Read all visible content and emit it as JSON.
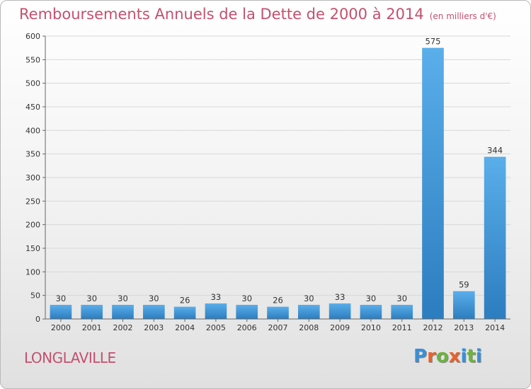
{
  "title": "Remboursements Annuels de la Dette de 2000 à 2014",
  "subtitle": "(en milliers d'€)",
  "location": "LONGLAVILLE",
  "logo": {
    "text": "Proxiti",
    "colors": [
      "#3a8fd6",
      "#e8622c",
      "#6cb33f",
      "#e8622c",
      "#3a8fd6",
      "#6cb33f",
      "#3a8fd6"
    ]
  },
  "colors": {
    "bar_top": "#5aaeea",
    "bar_bottom": "#2c7dbf",
    "grid": "#d8d8d8",
    "axis": "#666666"
  },
  "chart_data": {
    "type": "bar",
    "categories": [
      "2000",
      "2001",
      "2002",
      "2003",
      "2004",
      "2005",
      "2006",
      "2007",
      "2008",
      "2009",
      "2010",
      "2011",
      "2012",
      "2013",
      "2014"
    ],
    "values": [
      30,
      30,
      30,
      30,
      26,
      33,
      30,
      26,
      30,
      33,
      30,
      30,
      575,
      59,
      344
    ],
    "data_labels": [
      "30",
      "30",
      "30",
      "30",
      "26",
      "33",
      "30",
      "26",
      "30",
      "33",
      "30",
      "30",
      "575",
      "59",
      "344"
    ],
    "y_ticks": [
      0,
      50,
      100,
      150,
      200,
      250,
      300,
      350,
      400,
      450,
      500,
      550,
      600
    ],
    "y_tick_labels": [
      "0",
      "50",
      "100",
      "150",
      "200",
      "250",
      "300",
      "350",
      "400",
      "450",
      "500",
      "550",
      "600"
    ],
    "ylim": [
      0,
      600
    ],
    "grid": true,
    "legend": "none"
  }
}
